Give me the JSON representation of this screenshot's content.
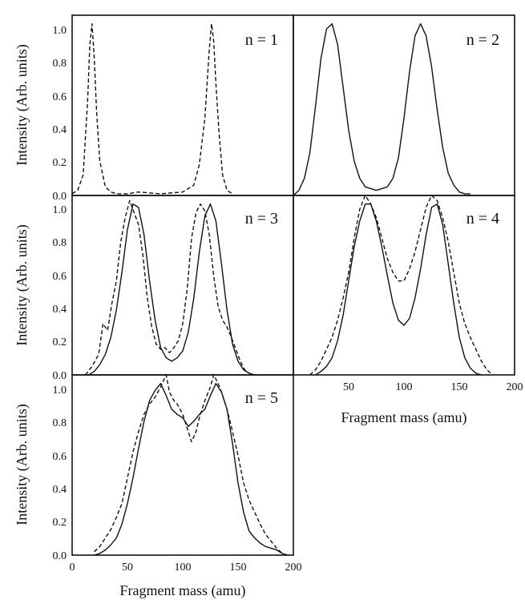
{
  "chart_data": [
    {
      "type": "line",
      "label": "n = 1",
      "ylabel": "Intensity (Arb. units)",
      "xlim": [
        0,
        200
      ],
      "ylim": [
        0,
        1.05
      ],
      "y_ticks": [
        "0.0",
        "0.2",
        "0.4",
        "0.6",
        "0.8",
        "1.0"
      ],
      "series": [
        {
          "style": "dashed",
          "x": [
            0,
            5,
            10,
            14,
            16,
            18,
            20,
            22,
            25,
            30,
            35,
            40,
            50,
            60,
            80,
            100,
            110,
            115,
            120,
            124,
            126,
            128,
            130,
            133,
            136,
            140,
            145
          ],
          "y": [
            0.01,
            0.03,
            0.12,
            0.55,
            0.88,
            1.0,
            0.8,
            0.5,
            0.2,
            0.05,
            0.02,
            0.01,
            0.01,
            0.02,
            0.01,
            0.02,
            0.06,
            0.18,
            0.45,
            0.85,
            1.0,
            0.9,
            0.65,
            0.35,
            0.12,
            0.03,
            0.01
          ]
        }
      ]
    },
    {
      "type": "line",
      "label": "n = 2",
      "xlim": [
        0,
        200
      ],
      "ylim": [
        0,
        1.05
      ],
      "series": [
        {
          "style": "solid",
          "x": [
            0,
            5,
            10,
            15,
            20,
            25,
            30,
            35,
            40,
            45,
            50,
            55,
            60,
            65,
            70,
            75,
            80,
            85,
            90,
            95,
            100,
            105,
            110,
            115,
            120,
            125,
            130,
            135,
            140,
            145,
            150,
            155,
            160
          ],
          "y": [
            0.0,
            0.03,
            0.1,
            0.25,
            0.52,
            0.8,
            0.97,
            1.0,
            0.88,
            0.63,
            0.38,
            0.2,
            0.1,
            0.05,
            0.04,
            0.03,
            0.04,
            0.05,
            0.1,
            0.22,
            0.45,
            0.72,
            0.93,
            1.0,
            0.93,
            0.75,
            0.5,
            0.28,
            0.13,
            0.06,
            0.02,
            0.01,
            0.01
          ]
        }
      ]
    },
    {
      "type": "line",
      "label": "n = 3",
      "ylabel": "Intensity (Arb. units)",
      "xlim": [
        0,
        200
      ],
      "ylim": [
        0,
        1.05
      ],
      "y_ticks": [
        "0.0",
        "0.2",
        "0.4",
        "0.6",
        "0.8",
        "1.0"
      ],
      "series": [
        {
          "style": "solid",
          "x": [
            15,
            20,
            25,
            30,
            35,
            40,
            45,
            50,
            55,
            60,
            65,
            70,
            75,
            80,
            85,
            90,
            95,
            100,
            105,
            110,
            115,
            120,
            125,
            130,
            135,
            140,
            145,
            150,
            155,
            160,
            165
          ],
          "y": [
            0.0,
            0.02,
            0.06,
            0.12,
            0.22,
            0.38,
            0.6,
            0.85,
            1.0,
            0.98,
            0.82,
            0.55,
            0.32,
            0.16,
            0.1,
            0.08,
            0.1,
            0.14,
            0.25,
            0.45,
            0.72,
            0.93,
            1.0,
            0.9,
            0.65,
            0.38,
            0.18,
            0.08,
            0.03,
            0.01,
            0.0
          ]
        },
        {
          "style": "dashed",
          "x": [
            12,
            18,
            24,
            28,
            32,
            36,
            40,
            44,
            48,
            52,
            56,
            60,
            64,
            68,
            72,
            76,
            80,
            84,
            88,
            92,
            96,
            100,
            104,
            108,
            112,
            116,
            120,
            124,
            128,
            132,
            136,
            140,
            144,
            148,
            152,
            156,
            160
          ],
          "y": [
            0.0,
            0.05,
            0.12,
            0.3,
            0.26,
            0.42,
            0.55,
            0.78,
            0.92,
            1.02,
            0.95,
            0.88,
            0.7,
            0.45,
            0.28,
            0.18,
            0.15,
            0.16,
            0.13,
            0.16,
            0.2,
            0.3,
            0.5,
            0.8,
            0.95,
            1.0,
            0.96,
            0.82,
            0.58,
            0.4,
            0.32,
            0.28,
            0.22,
            0.15,
            0.08,
            0.03,
            0.01
          ]
        }
      ]
    },
    {
      "type": "line",
      "label": "n = 4",
      "xlim": [
        0,
        200
      ],
      "ylim": [
        0,
        1.05
      ],
      "x_ticks": [
        "50",
        "100",
        "150",
        "200"
      ],
      "xlabel": "Fragment mass (amu)",
      "series": [
        {
          "style": "solid",
          "x": [
            20,
            25,
            30,
            35,
            40,
            45,
            50,
            55,
            60,
            65,
            70,
            75,
            80,
            85,
            90,
            95,
            100,
            105,
            110,
            115,
            120,
            125,
            130,
            135,
            140,
            145,
            150,
            155,
            160,
            165,
            170
          ],
          "y": [
            0.0,
            0.02,
            0.05,
            0.1,
            0.2,
            0.35,
            0.55,
            0.75,
            0.9,
            1.0,
            1.0,
            0.9,
            0.75,
            0.58,
            0.42,
            0.32,
            0.29,
            0.33,
            0.45,
            0.62,
            0.82,
            0.98,
            1.0,
            0.88,
            0.65,
            0.42,
            0.22,
            0.1,
            0.04,
            0.01,
            0.0
          ]
        },
        {
          "style": "dashed",
          "x": [
            15,
            20,
            25,
            30,
            35,
            40,
            45,
            50,
            55,
            60,
            65,
            70,
            75,
            80,
            85,
            90,
            95,
            100,
            105,
            110,
            115,
            120,
            125,
            130,
            135,
            140,
            145,
            150,
            155,
            160,
            165,
            170,
            175,
            180
          ],
          "y": [
            0.0,
            0.03,
            0.08,
            0.15,
            0.22,
            0.32,
            0.45,
            0.6,
            0.8,
            0.97,
            1.05,
            1.0,
            0.92,
            0.8,
            0.68,
            0.6,
            0.55,
            0.55,
            0.62,
            0.72,
            0.85,
            0.98,
            1.05,
            1.02,
            0.92,
            0.78,
            0.6,
            0.42,
            0.3,
            0.22,
            0.15,
            0.08,
            0.03,
            0.0
          ]
        }
      ]
    },
    {
      "type": "line",
      "label": "n = 5",
      "ylabel": "Intensity (Arb. units)",
      "xlabel": "Fragment mass (amu)",
      "xlim": [
        0,
        200
      ],
      "ylim": [
        0,
        1.05
      ],
      "y_ticks": [
        "0.0",
        "0.2",
        "0.4",
        "0.6",
        "0.8",
        "1.0"
      ],
      "x_ticks": [
        "0",
        "50",
        "100",
        "150",
        "200"
      ],
      "series": [
        {
          "style": "solid",
          "x": [
            20,
            25,
            30,
            35,
            40,
            45,
            50,
            55,
            60,
            65,
            70,
            75,
            80,
            85,
            90,
            95,
            100,
            105,
            110,
            115,
            120,
            125,
            130,
            135,
            140,
            145,
            150,
            155,
            160,
            165,
            170,
            175,
            180,
            185,
            190,
            195
          ],
          "y": [
            0.0,
            0.01,
            0.03,
            0.06,
            0.1,
            0.18,
            0.3,
            0.45,
            0.62,
            0.78,
            0.9,
            0.96,
            1.0,
            0.93,
            0.85,
            0.82,
            0.8,
            0.75,
            0.78,
            0.82,
            0.85,
            0.93,
            1.0,
            0.95,
            0.85,
            0.65,
            0.42,
            0.25,
            0.14,
            0.1,
            0.07,
            0.05,
            0.04,
            0.03,
            0.01,
            0.0
          ]
        },
        {
          "style": "dashed",
          "x": [
            20,
            25,
            30,
            35,
            40,
            45,
            50,
            55,
            60,
            65,
            70,
            75,
            80,
            85,
            88,
            92,
            95,
            100,
            105,
            108,
            112,
            115,
            120,
            125,
            128,
            132,
            135,
            140,
            145,
            150,
            155,
            160,
            165,
            170,
            175,
            180,
            185,
            190
          ],
          "y": [
            0.02,
            0.05,
            0.1,
            0.15,
            0.22,
            0.3,
            0.45,
            0.6,
            0.72,
            0.82,
            0.88,
            0.92,
            0.98,
            1.05,
            0.95,
            0.9,
            0.88,
            0.82,
            0.72,
            0.66,
            0.72,
            0.8,
            0.9,
            0.98,
            1.05,
            1.0,
            0.95,
            0.85,
            0.72,
            0.58,
            0.42,
            0.32,
            0.25,
            0.18,
            0.12,
            0.08,
            0.04,
            0.01
          ]
        }
      ]
    }
  ]
}
